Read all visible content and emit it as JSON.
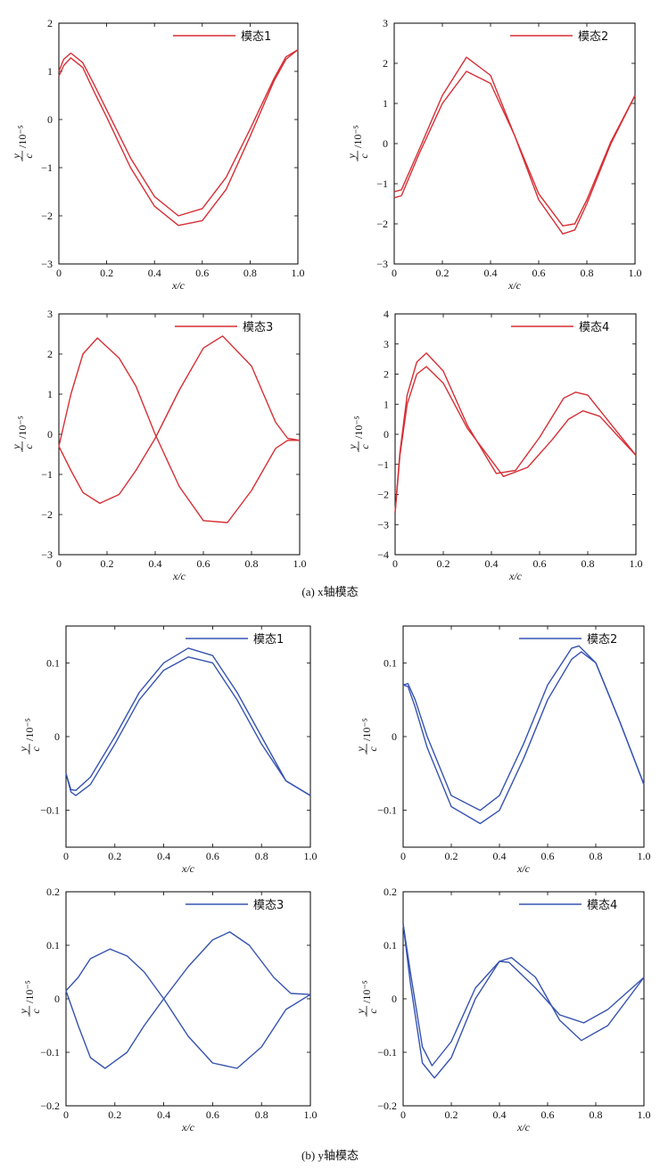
{
  "captions": {
    "a": "(a) x轴模态",
    "b": "(b) y轴模态"
  },
  "colors": {
    "x_mode": "#d62f35",
    "y_mode": "#3653b0"
  },
  "chart_data": [
    {
      "type": "line",
      "legend": "模态1",
      "xlabel": "x/c",
      "ylabel_top": "y",
      "ylabel_bottom": "c",
      "ylabel_unit": "/10⁻⁵",
      "xlim": [
        0,
        1
      ],
      "ylim": [
        -3,
        2
      ],
      "xticks": [
        "0",
        "0.2",
        "0.4",
        "0.6",
        "0.8",
        "1.0"
      ],
      "yticks": [
        "−3",
        "−2",
        "−1",
        "0",
        "1",
        "2"
      ],
      "series": [
        {
          "x": [
            0,
            0.02,
            0.05,
            0.1,
            0.15,
            0.2,
            0.3,
            0.4,
            0.5,
            0.6,
            0.7,
            0.8,
            0.9,
            0.95,
            1.0
          ],
          "y": [
            1.0,
            1.25,
            1.38,
            1.18,
            0.7,
            0.2,
            -0.8,
            -1.6,
            -2.0,
            -1.85,
            -1.2,
            -0.2,
            0.85,
            1.3,
            1.45
          ]
        },
        {
          "x": [
            0,
            0.02,
            0.05,
            0.1,
            0.15,
            0.2,
            0.3,
            0.4,
            0.5,
            0.6,
            0.7,
            0.8,
            0.9,
            0.95,
            1.0
          ],
          "y": [
            0.9,
            1.12,
            1.28,
            1.08,
            0.55,
            0.05,
            -1.0,
            -1.8,
            -2.2,
            -2.1,
            -1.45,
            -0.35,
            0.8,
            1.25,
            1.45
          ]
        }
      ]
    },
    {
      "type": "line",
      "legend": "模态2",
      "xlabel": "x/c",
      "ylabel_top": "y",
      "ylabel_bottom": "c",
      "ylabel_unit": "/10⁻⁵",
      "xlim": [
        0,
        1
      ],
      "ylim": [
        -3,
        3
      ],
      "xticks": [
        "0",
        "0.2",
        "0.4",
        "0.6",
        "0.8",
        "1.0"
      ],
      "yticks": [
        "−3",
        "−2",
        "−1",
        "0",
        "1",
        "2",
        "3"
      ],
      "series": [
        {
          "x": [
            0,
            0.03,
            0.1,
            0.2,
            0.3,
            0.4,
            0.5,
            0.6,
            0.7,
            0.75,
            0.8,
            0.9,
            1.0
          ],
          "y": [
            -1.2,
            -1.15,
            -0.2,
            1.2,
            2.15,
            1.7,
            0.2,
            -1.4,
            -2.25,
            -2.15,
            -1.5,
            0.0,
            1.2
          ]
        },
        {
          "x": [
            0,
            0.03,
            0.1,
            0.2,
            0.3,
            0.4,
            0.5,
            0.6,
            0.7,
            0.75,
            0.8,
            0.9,
            1.0
          ],
          "y": [
            -1.35,
            -1.3,
            -0.3,
            1.0,
            1.8,
            1.5,
            0.2,
            -1.25,
            -2.05,
            -2.0,
            -1.4,
            0.05,
            1.2
          ]
        }
      ]
    },
    {
      "type": "line",
      "legend": "模态3",
      "xlabel": "x/c",
      "ylabel_top": "y",
      "ylabel_bottom": "c",
      "ylabel_unit": "/10⁻⁵",
      "xlim": [
        0,
        1
      ],
      "ylim": [
        -3,
        3
      ],
      "xticks": [
        "0",
        "0.2",
        "0.4",
        "0.6",
        "0.8",
        "1.0"
      ],
      "yticks": [
        "−3",
        "−2",
        "−1",
        "0",
        "1",
        "2",
        "3"
      ],
      "series": [
        {
          "x": [
            0,
            0.05,
            0.1,
            0.16,
            0.25,
            0.32,
            0.4,
            0.5,
            0.6,
            0.7,
            0.8,
            0.9,
            0.95,
            1.0
          ],
          "y": [
            -0.3,
            1.0,
            2.0,
            2.4,
            1.9,
            1.2,
            0.0,
            -1.3,
            -2.15,
            -2.2,
            -1.4,
            -0.35,
            -0.15,
            -0.15
          ]
        },
        {
          "x": [
            0,
            0.05,
            0.1,
            0.17,
            0.25,
            0.32,
            0.4,
            0.5,
            0.6,
            0.68,
            0.8,
            0.9,
            0.95,
            1.0
          ],
          "y": [
            -0.3,
            -0.9,
            -1.45,
            -1.72,
            -1.5,
            -0.9,
            -0.1,
            1.1,
            2.15,
            2.45,
            1.7,
            0.3,
            -0.1,
            -0.15
          ]
        }
      ]
    },
    {
      "type": "line",
      "legend": "模态4",
      "xlabel": "x/c",
      "ylabel_top": "y",
      "ylabel_bottom": "c",
      "ylabel_unit": "/10⁻⁵",
      "xlim": [
        0,
        1
      ],
      "ylim": [
        -4,
        4
      ],
      "xticks": [
        "0",
        "0.2",
        "0.4",
        "0.6",
        "0.8",
        "1.0"
      ],
      "yticks": [
        "−4",
        "−3",
        "−2",
        "−1",
        "0",
        "1",
        "2",
        "3",
        "4"
      ],
      "series": [
        {
          "x": [
            0,
            0.02,
            0.05,
            0.09,
            0.13,
            0.2,
            0.3,
            0.42,
            0.5,
            0.6,
            0.7,
            0.75,
            0.8,
            0.9,
            1.0
          ],
          "y": [
            -2.6,
            -0.6,
            1.3,
            2.4,
            2.7,
            2.1,
            0.3,
            -1.3,
            -1.2,
            -0.1,
            1.2,
            1.4,
            1.3,
            0.3,
            -0.7
          ]
        },
        {
          "x": [
            0,
            0.02,
            0.05,
            0.09,
            0.13,
            0.2,
            0.3,
            0.45,
            0.55,
            0.65,
            0.72,
            0.78,
            0.85,
            0.93,
            1.0
          ],
          "y": [
            -2.6,
            -0.7,
            1.0,
            2.0,
            2.25,
            1.7,
            0.2,
            -1.4,
            -1.1,
            -0.2,
            0.5,
            0.78,
            0.6,
            -0.1,
            -0.7
          ]
        }
      ]
    },
    {
      "type": "line",
      "legend": "模态1",
      "xlabel": "x/c",
      "ylabel_top": "y",
      "ylabel_bottom": "c",
      "ylabel_unit": "/10⁻⁵",
      "xlim": [
        0,
        1
      ],
      "ylim": [
        -0.15,
        0.15
      ],
      "xticks": [
        "0",
        "0.2",
        "0.4",
        "0.6",
        "0.8",
        "1.0"
      ],
      "yticks": [
        "−0.1",
        "0",
        "0.1"
      ],
      "ytick_values": [
        -0.1,
        0,
        0.1
      ],
      "series": [
        {
          "x": [
            0,
            0.02,
            0.04,
            0.1,
            0.2,
            0.3,
            0.4,
            0.5,
            0.6,
            0.7,
            0.8,
            0.9,
            1.0
          ],
          "y": [
            -0.05,
            -0.072,
            -0.073,
            -0.055,
            0.0,
            0.06,
            0.1,
            0.12,
            0.11,
            0.06,
            0.0,
            -0.06,
            -0.08
          ]
        },
        {
          "x": [
            0,
            0.02,
            0.04,
            0.1,
            0.2,
            0.3,
            0.4,
            0.5,
            0.6,
            0.7,
            0.8,
            0.9,
            1.0
          ],
          "y": [
            -0.05,
            -0.075,
            -0.08,
            -0.065,
            -0.01,
            0.05,
            0.09,
            0.108,
            0.1,
            0.05,
            -0.01,
            -0.06,
            -0.08
          ]
        }
      ]
    },
    {
      "type": "line",
      "legend": "模态2",
      "xlabel": "x/c",
      "ylabel_top": "y",
      "ylabel_bottom": "c",
      "ylabel_unit": "/10⁻⁵",
      "xlim": [
        0,
        1
      ],
      "ylim": [
        -0.15,
        0.15
      ],
      "xticks": [
        "0",
        "0.2",
        "0.4",
        "0.6",
        "0.8",
        "1.0"
      ],
      "yticks": [
        "−0.1",
        "0",
        "0.1"
      ],
      "ytick_values": [
        -0.1,
        0,
        0.1
      ],
      "series": [
        {
          "x": [
            0,
            0.02,
            0.05,
            0.1,
            0.2,
            0.32,
            0.4,
            0.5,
            0.6,
            0.7,
            0.73,
            0.8,
            0.9,
            1.0
          ],
          "y": [
            0.07,
            0.072,
            0.05,
            0.0,
            -0.08,
            -0.1,
            -0.08,
            -0.01,
            0.07,
            0.12,
            0.123,
            0.1,
            0.02,
            -0.065
          ]
        },
        {
          "x": [
            0,
            0.02,
            0.05,
            0.1,
            0.2,
            0.32,
            0.4,
            0.5,
            0.6,
            0.7,
            0.74,
            0.8,
            0.9,
            1.0
          ],
          "y": [
            0.07,
            0.068,
            0.04,
            -0.015,
            -0.095,
            -0.118,
            -0.1,
            -0.03,
            0.05,
            0.105,
            0.115,
            0.1,
            0.02,
            -0.065
          ]
        }
      ]
    },
    {
      "type": "line",
      "legend": "模态3",
      "xlabel": "x/c",
      "ylabel_top": "y",
      "ylabel_bottom": "c",
      "ylabel_unit": "/10⁻⁵",
      "xlim": [
        0,
        1
      ],
      "ylim": [
        -0.2,
        0.2
      ],
      "xticks": [
        "0",
        "0.2",
        "0.4",
        "0.6",
        "0.8",
        "1.0"
      ],
      "yticks": [
        "−0.2",
        "−0.1",
        "0",
        "0.1",
        "0.2"
      ],
      "ytick_values": [
        -0.2,
        -0.1,
        0,
        0.1,
        0.2
      ],
      "series": [
        {
          "x": [
            0,
            0.05,
            0.1,
            0.18,
            0.25,
            0.32,
            0.4,
            0.5,
            0.6,
            0.7,
            0.8,
            0.9,
            1.0
          ],
          "y": [
            0.015,
            0.04,
            0.075,
            0.093,
            0.08,
            0.05,
            0.0,
            -0.07,
            -0.12,
            -0.13,
            -0.09,
            -0.02,
            0.008
          ]
        },
        {
          "x": [
            0,
            0.05,
            0.1,
            0.16,
            0.25,
            0.32,
            0.4,
            0.5,
            0.6,
            0.67,
            0.75,
            0.85,
            0.92,
            1.0
          ],
          "y": [
            0.015,
            -0.05,
            -0.11,
            -0.13,
            -0.1,
            -0.05,
            0.0,
            0.06,
            0.11,
            0.125,
            0.1,
            0.04,
            0.01,
            0.008
          ]
        }
      ]
    },
    {
      "type": "line",
      "legend": "模态4",
      "xlabel": "x/c",
      "ylabel_top": "y",
      "ylabel_bottom": "c",
      "ylabel_unit": "/10⁻⁵",
      "xlim": [
        0,
        1
      ],
      "ylim": [
        -0.2,
        0.2
      ],
      "xticks": [
        "0",
        "0.2",
        "0.4",
        "0.6",
        "0.8",
        "1.0"
      ],
      "yticks": [
        "−0.2",
        "−0.1",
        "0",
        "0.1",
        "0.2"
      ],
      "ytick_values": [
        -0.2,
        -0.1,
        0,
        0.1,
        0.2
      ],
      "series": [
        {
          "x": [
            0,
            0.03,
            0.08,
            0.12,
            0.2,
            0.3,
            0.4,
            0.44,
            0.55,
            0.65,
            0.75,
            0.85,
            1.0
          ],
          "y": [
            0.14,
            0.05,
            -0.09,
            -0.125,
            -0.08,
            0.02,
            0.07,
            0.068,
            0.02,
            -0.03,
            -0.045,
            -0.02,
            0.04
          ]
        },
        {
          "x": [
            0,
            0.03,
            0.08,
            0.13,
            0.2,
            0.3,
            0.4,
            0.45,
            0.55,
            0.65,
            0.74,
            0.85,
            1.0
          ],
          "y": [
            0.14,
            0.03,
            -0.12,
            -0.148,
            -0.11,
            0.0,
            0.07,
            0.077,
            0.04,
            -0.04,
            -0.078,
            -0.05,
            0.04
          ]
        }
      ]
    }
  ]
}
